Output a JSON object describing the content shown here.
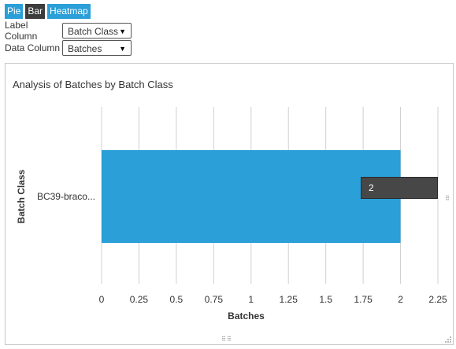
{
  "tabs": [
    {
      "label": "Pie",
      "active": false
    },
    {
      "label": "Bar",
      "active": true
    },
    {
      "label": "Heatmap",
      "active": false
    }
  ],
  "controls": {
    "label_column": {
      "label": "Label Column",
      "value": "Batch Class"
    },
    "data_column": {
      "label": "Data Column",
      "value": "Batches"
    }
  },
  "icons": {
    "caret": "dropdown-caret-icon",
    "grip": "resize-grip-icon"
  },
  "colors": {
    "bar": "#2a9fd8",
    "tab": "#2a9fd8",
    "tab_active": "#3c3c3c",
    "tooltip": "#474747"
  },
  "chart_data": {
    "type": "bar",
    "orientation": "horizontal",
    "title": "Analysis of Batches by Batch Class",
    "categories": [
      "BC39-braco..."
    ],
    "values": [
      2
    ],
    "xlabel": "Batches",
    "ylabel": "Batch Class",
    "xlim": [
      0,
      2.25
    ],
    "ticks": [
      "0",
      "0.25",
      "0.5",
      "0.75",
      "1",
      "1.25",
      "1.5",
      "1.75",
      "2",
      "2.25"
    ],
    "grid": true,
    "tooltip": {
      "text": "2"
    }
  }
}
